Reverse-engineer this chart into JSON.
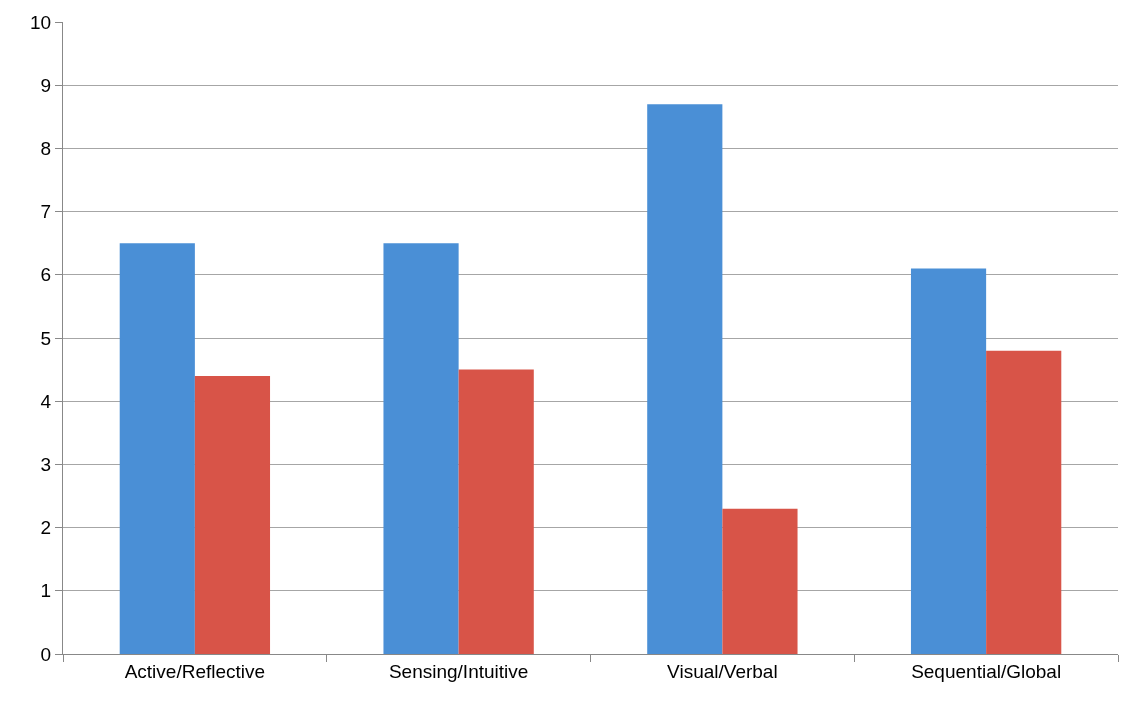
{
  "chart_data": {
    "type": "bar",
    "categories": [
      "Active/Reflective",
      "Sensing/Intuitive",
      "Visual/Verbal",
      "Sequential/Global"
    ],
    "series": [
      {
        "color": "#4a8fd6",
        "values": [
          6.5,
          6.5,
          8.7,
          6.1
        ]
      },
      {
        "color": "#d85448",
        "values": [
          4.4,
          4.5,
          2.3,
          4.8
        ]
      }
    ],
    "ylim": [
      0,
      10
    ],
    "yticks": [
      0,
      1,
      2,
      3,
      4,
      5,
      6,
      7,
      8,
      9,
      10
    ],
    "grid": "y"
  }
}
